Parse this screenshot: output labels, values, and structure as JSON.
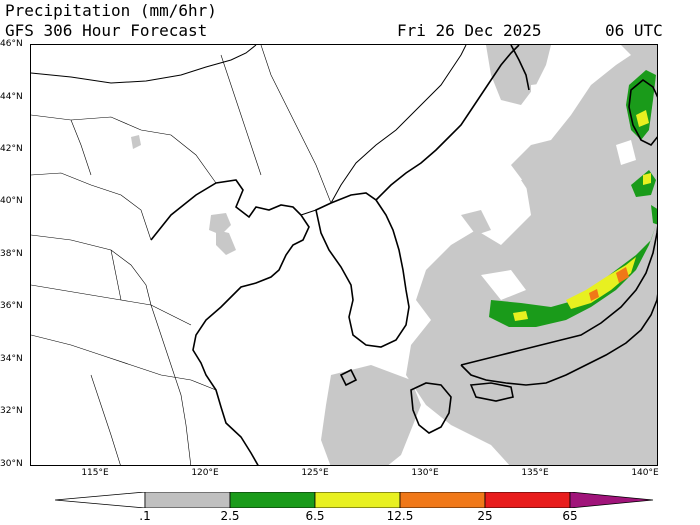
{
  "header": {
    "title": "Precipitation (mm/6hr)",
    "model": "GFS 306 Hour Forecast",
    "date": "Fri 26 Dec 2025",
    "time": "06 UTC"
  },
  "latitude_labels": [
    "46°N",
    "44°N",
    "42°N",
    "40°N",
    "38°N",
    "36°N",
    "34°N",
    "32°N",
    "30°N"
  ],
  "longitude_labels": [
    "115°E",
    "120°E",
    "125°E",
    "130°E",
    "135°E",
    "140°E"
  ],
  "colorbar": {
    "labels": [
      ".1",
      "2.5",
      "6.5",
      "12.5",
      "25",
      "65"
    ],
    "colors": [
      "#ffffff",
      "#c0c0c0",
      "#1a9b1a",
      "#e8f020",
      "#f07818",
      "#e81c1c",
      "#a0147a"
    ]
  },
  "colors": {
    "light_precip": "#c8c8c8",
    "moderate_precip": "#1a9b1a",
    "heavy_precip": "#e8f020",
    "very_heavy_precip": "#f07818",
    "coastline": "#000000",
    "borders": "#000000"
  }
}
